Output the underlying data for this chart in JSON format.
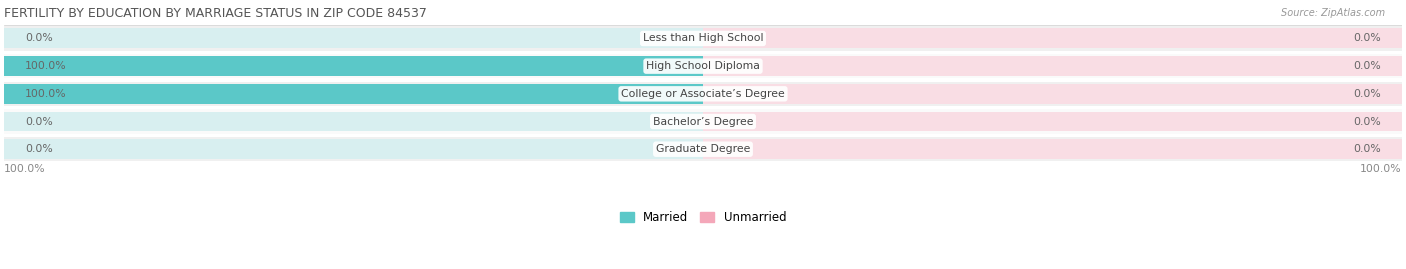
{
  "title": "FERTILITY BY EDUCATION BY MARRIAGE STATUS IN ZIP CODE 84537",
  "source": "Source: ZipAtlas.com",
  "categories": [
    "Less than High School",
    "High School Diploma",
    "College or Associate’s Degree",
    "Bachelor’s Degree",
    "Graduate Degree"
  ],
  "married_values": [
    0.0,
    100.0,
    100.0,
    0.0,
    0.0
  ],
  "unmarried_values": [
    0.0,
    0.0,
    0.0,
    0.0,
    0.0
  ],
  "married_color": "#5bc8c8",
  "unmarried_color": "#f4a7b9",
  "title_color": "#555555",
  "label_color": "#444444",
  "value_color": "#666666",
  "axis_label_color": "#888888",
  "legend_married": "Married",
  "legend_unmarried": "Unmarried",
  "x_min": -100,
  "x_max": 100,
  "bottom_left_label": "100.0%",
  "bottom_right_label": "100.0%",
  "row_colors": [
    "#f0f0f0",
    "#fafafa"
  ]
}
